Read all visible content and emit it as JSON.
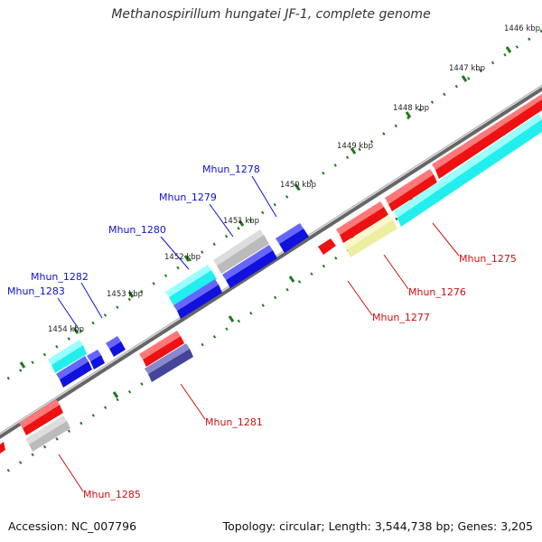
{
  "title": "Methanospirillum hungatei JF-1, complete genome",
  "footer": {
    "accession": "Accession: NC_007796",
    "summary": "Topology: circular; Length: 3,544,738 bp; Genes: 3,205"
  },
  "colors": {
    "backbone": "#777777",
    "tick": "#1f7a1f",
    "forward_label": "#1111cc",
    "reverse_label": "#cc1111",
    "red": "#ee1111",
    "cyan": "#22eeee",
    "blue": "#1111dd",
    "gray": "#bbbbbb",
    "tan": "#eeeea0",
    "navy": "#444499"
  },
  "kbp_labels": [
    "1446 kbp",
    "1447 kbp",
    "1448 kbp",
    "1449 kbp",
    "1450 kbp",
    "1451 kbp",
    "1452 kbp",
    "1453 kbp",
    "1454 kbp"
  ],
  "gene_labels": [
    {
      "id": "Mhun_1278",
      "text": "Mhun_1278",
      "strand": "forward"
    },
    {
      "id": "Mhun_1279",
      "text": "Mhun_1279",
      "strand": "forward"
    },
    {
      "id": "Mhun_1280",
      "text": "Mhun_1280",
      "strand": "forward"
    },
    {
      "id": "Mhun_1282",
      "text": "Mhun_1282",
      "strand": "forward"
    },
    {
      "id": "Mhun_1283",
      "text": "Mhun_1283",
      "strand": "forward"
    },
    {
      "id": "Mhun_1275",
      "text": "Mhun_1275",
      "strand": "reverse"
    },
    {
      "id": "Mhun_1276",
      "text": "Mhun_1276",
      "strand": "reverse"
    },
    {
      "id": "Mhun_1277",
      "text": "Mhun_1277",
      "strand": "reverse"
    },
    {
      "id": "Mhun_1281",
      "text": "Mhun_1281",
      "strand": "reverse"
    },
    {
      "id": "Mhun_1285",
      "text": "Mhun_1285",
      "strand": "reverse"
    }
  ]
}
